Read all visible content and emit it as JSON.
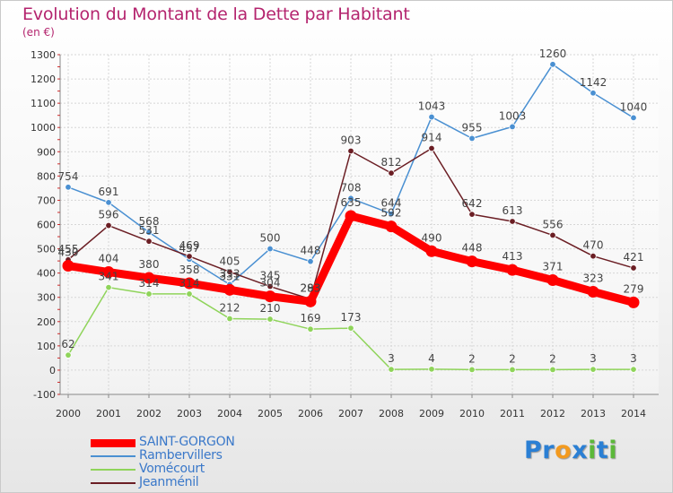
{
  "chart_data": {
    "type": "line",
    "title": "Evolution du Montant de la Dette par Habitant",
    "subtitle": "(en €)",
    "x": [
      "2000",
      "2001",
      "2002",
      "2003",
      "2004",
      "2005",
      "2006",
      "2007",
      "2008",
      "2009",
      "2010",
      "2011",
      "2012",
      "2013",
      "2014"
    ],
    "ylim": [
      -100,
      1300
    ],
    "yticks": [
      -100,
      0,
      100,
      200,
      300,
      400,
      500,
      600,
      700,
      800,
      900,
      1000,
      1100,
      1200,
      1300
    ],
    "grid": true,
    "legend_position": "bottom-left",
    "series": [
      {
        "name": "SAINT-GORGON",
        "color": "#ff0000",
        "width": "thick",
        "values": [
          430,
          404,
          380,
          358,
          331,
          304,
          283,
          635,
          592,
          490,
          448,
          413,
          371,
          323,
          279
        ]
      },
      {
        "name": "Rambervillers",
        "color": "#4a90d2",
        "width": "thin",
        "values": [
          754,
          691,
          568,
          457,
          353,
          500,
          448,
          708,
          644,
          1043,
          955,
          1003,
          1260,
          1142,
          1040
        ]
      },
      {
        "name": "Vomécourt",
        "color": "#8fd45a",
        "width": "thin",
        "values": [
          62,
          341,
          314,
          314,
          212,
          210,
          169,
          173,
          3,
          4,
          2,
          2,
          2,
          3,
          3
        ]
      },
      {
        "name": "Jeanménil",
        "color": "#6b1e24",
        "width": "thin",
        "values": [
          455,
          596,
          531,
          469,
          405,
          345,
          293,
          903,
          812,
          914,
          642,
          613,
          556,
          470,
          421
        ]
      }
    ]
  },
  "logo": {
    "letters": [
      "P",
      "r",
      "o",
      "x",
      "i",
      "t",
      "i"
    ],
    "colors": [
      "#2a7fd4",
      "#2a7fd4",
      "#f39a1f",
      "#2a7fd4",
      "#5cb83a",
      "#2a7fd4",
      "#5cb83a"
    ]
  }
}
